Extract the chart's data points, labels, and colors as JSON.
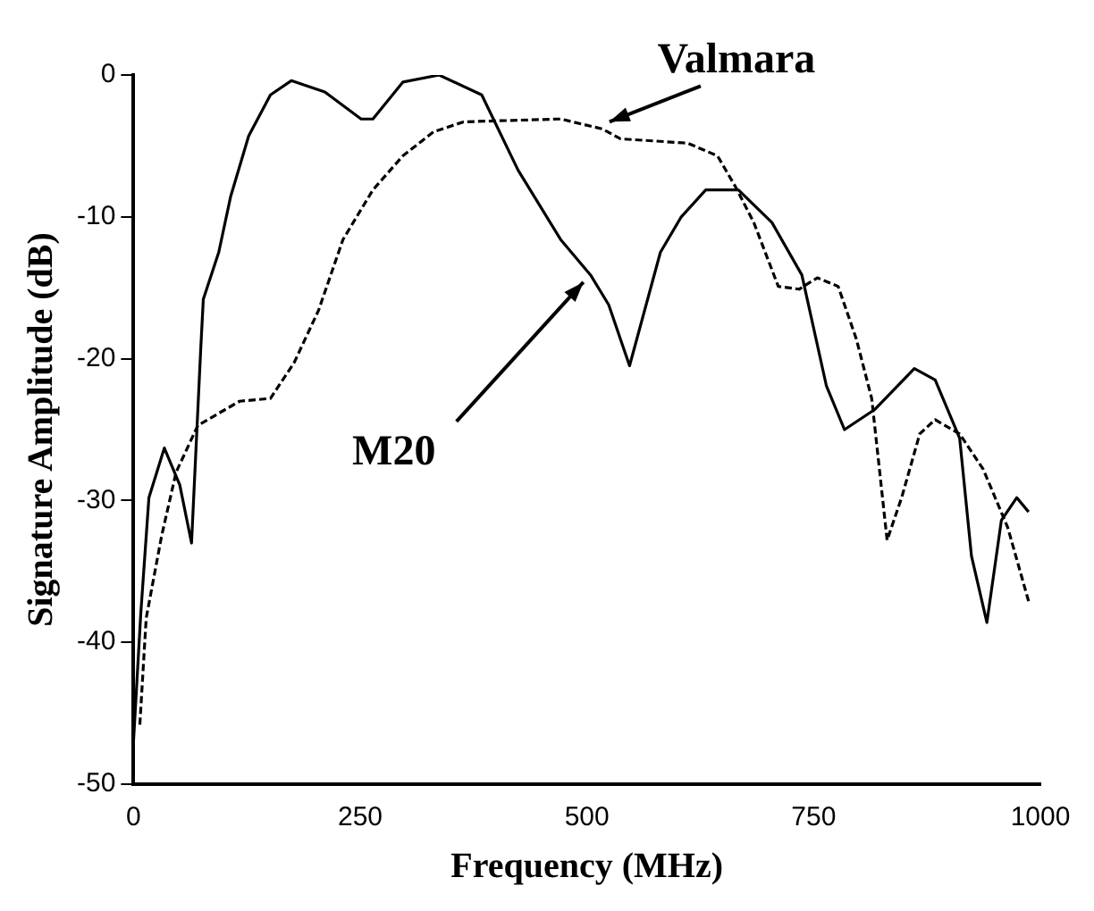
{
  "chart_data": {
    "type": "line",
    "xlabel": "Frequency (MHz)",
    "ylabel": "Signature Amplitude (dB)",
    "xlim": [
      0,
      1000
    ],
    "xticks": [
      0,
      250,
      500,
      750,
      1000
    ],
    "ylim": [
      -50,
      0
    ],
    "yticks": [
      -50,
      -40,
      -30,
      -20,
      -10,
      0
    ],
    "grid": false,
    "legend": false,
    "marker": "none",
    "annotations": [
      {
        "text": "Valmara",
        "x": 517,
        "y": -3.8
      },
      {
        "text": "M20",
        "x": 504,
        "y": -14.1
      }
    ],
    "series": [
      {
        "color": "#000000",
        "line_style": "solid",
        "x": [
          0,
          8,
          17,
          34,
          51,
          64,
          74,
          77,
          94,
          107,
          127,
          151,
          174,
          211,
          251,
          264,
          297,
          337,
          384,
          424,
          471,
          504,
          524,
          547,
          581,
          604,
          631,
          667,
          704,
          737,
          764,
          784,
          817,
          861,
          884,
          911,
          924,
          941,
          957,
          974,
          987
        ],
        "values": [
          -47,
          -38,
          -29.8,
          -26.3,
          -28.9,
          -33,
          -19.5,
          -15.8,
          -12.5,
          -8.6,
          -4.3,
          -1.4,
          -0.4,
          -1.2,
          -3.1,
          -3.1,
          -0.5,
          0,
          -1.4,
          -6.7,
          -11.6,
          -14.1,
          -16.2,
          -20.5,
          -12.5,
          -10,
          -8.1,
          -8.1,
          -10.4,
          -14.1,
          -21.9,
          -25,
          -23.6,
          -20.7,
          -21.5,
          -25.6,
          -33.9,
          -38.6,
          -31.4,
          -29.8,
          -30.8
        ]
      },
      {
        "color": "#000000",
        "line_style": "dashed",
        "x": [
          7,
          14,
          31,
          47,
          71,
          117,
          151,
          177,
          204,
          231,
          264,
          297,
          331,
          364,
          417,
          471,
          517,
          537,
          611,
          644,
          664,
          684,
          711,
          734,
          754,
          777,
          797,
          814,
          821,
          831,
          847,
          867,
          884,
          911,
          937,
          964,
          987
        ],
        "values": [
          -45.8,
          -38.3,
          -32.5,
          -28,
          -24.7,
          -23,
          -22.8,
          -20.3,
          -16.6,
          -11.6,
          -8.1,
          -5.7,
          -4,
          -3.3,
          -3.2,
          -3.1,
          -3.8,
          -4.5,
          -4.8,
          -5.7,
          -7.9,
          -10.4,
          -14.9,
          -15.1,
          -14.3,
          -14.9,
          -18.6,
          -22.8,
          -26.9,
          -32.8,
          -29.8,
          -25.3,
          -24.3,
          -25.3,
          -27.8,
          -31.9,
          -37.1
        ]
      }
    ]
  }
}
